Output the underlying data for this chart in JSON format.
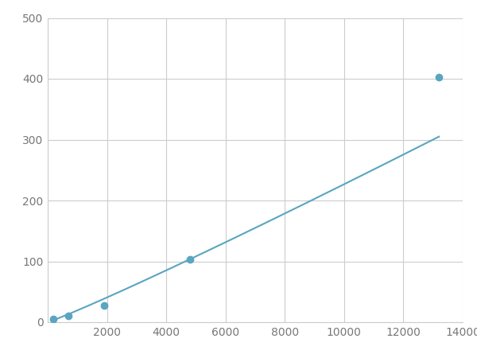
{
  "x": [
    200,
    700,
    1900,
    4800,
    13200
  ],
  "y": [
    5,
    10,
    27,
    103,
    403
  ],
  "line_color": "#5aa5c0",
  "marker_color": "#5aa5c0",
  "marker_size": 6,
  "line_width": 1.5,
  "xlim": [
    0,
    14000
  ],
  "ylim": [
    0,
    500
  ],
  "xticks": [
    0,
    2000,
    4000,
    6000,
    8000,
    10000,
    12000,
    14000
  ],
  "yticks": [
    0,
    100,
    200,
    300,
    400,
    500
  ],
  "grid_color": "#cccccc",
  "background_color": "#ffffff",
  "tick_label_color": "#777777",
  "tick_label_fontsize": 10,
  "fig_width": 6.0,
  "fig_height": 4.5
}
